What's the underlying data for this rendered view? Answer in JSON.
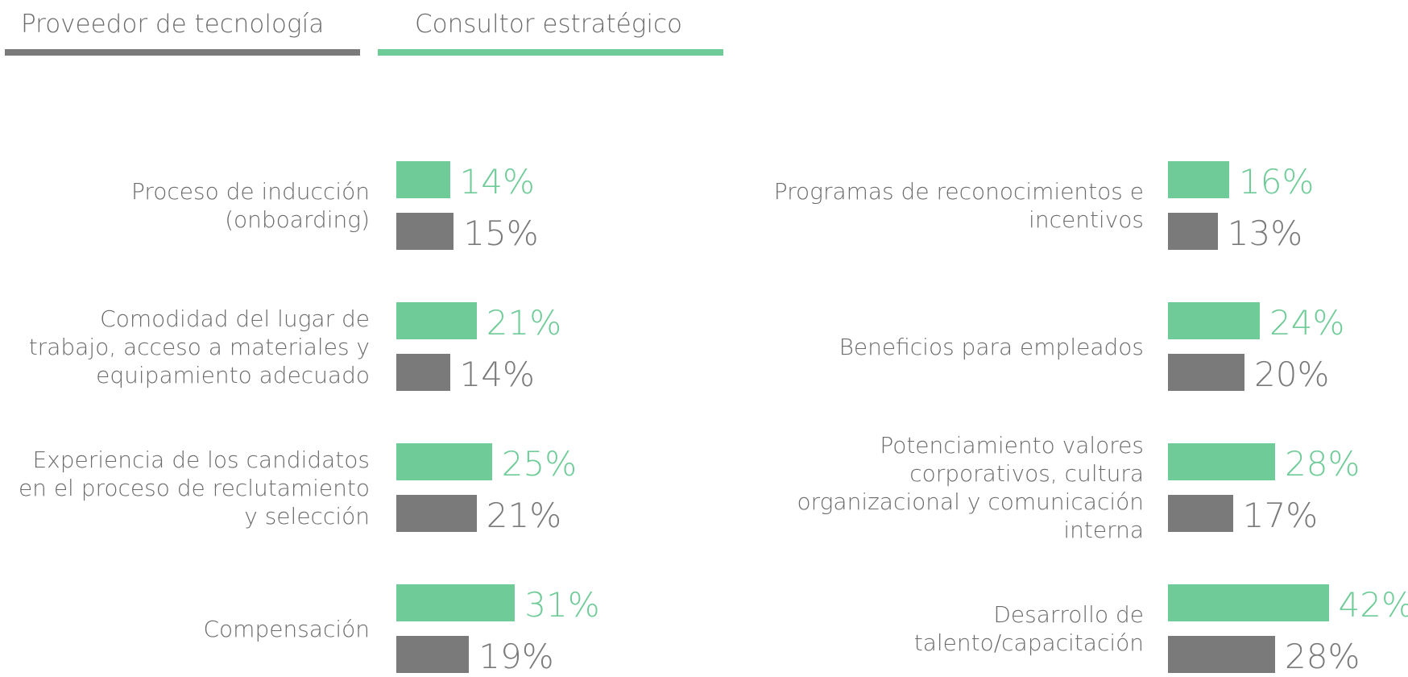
{
  "chart_data": {
    "type": "bar",
    "orientation": "horizontal",
    "categories": [
      "Proceso de inducción (onboarding)",
      "Comodidad del lugar de trabajo, acceso a materiales y equipamiento adecuado",
      "Experiencia de los candidatos en el proceso de reclutamiento y selección",
      "Compensación",
      "Programas de reconocimientos e incentivos",
      "Beneficios para empleados",
      "Potenciamiento valores corporativos, cultura organizacional y comunicación interna",
      "Desarrollo de talento/capacitación"
    ],
    "series": [
      {
        "name": "Proveedor de tecnología",
        "color": "#7a7a7b",
        "values": [
          15,
          14,
          21,
          19,
          13,
          20,
          17,
          28
        ],
        "value_labels": [
          "15%",
          "14%",
          "21%",
          "19%",
          "13%",
          "20%",
          "17%",
          "28%"
        ]
      },
      {
        "name": "Consultor estratégico",
        "color": "#6fcb97",
        "values": [
          14,
          21,
          25,
          31,
          16,
          24,
          28,
          42
        ],
        "value_labels": [
          "14%",
          "21%",
          "25%",
          "31%",
          "16%",
          "24%",
          "28%",
          "42%"
        ]
      }
    ]
  }
}
